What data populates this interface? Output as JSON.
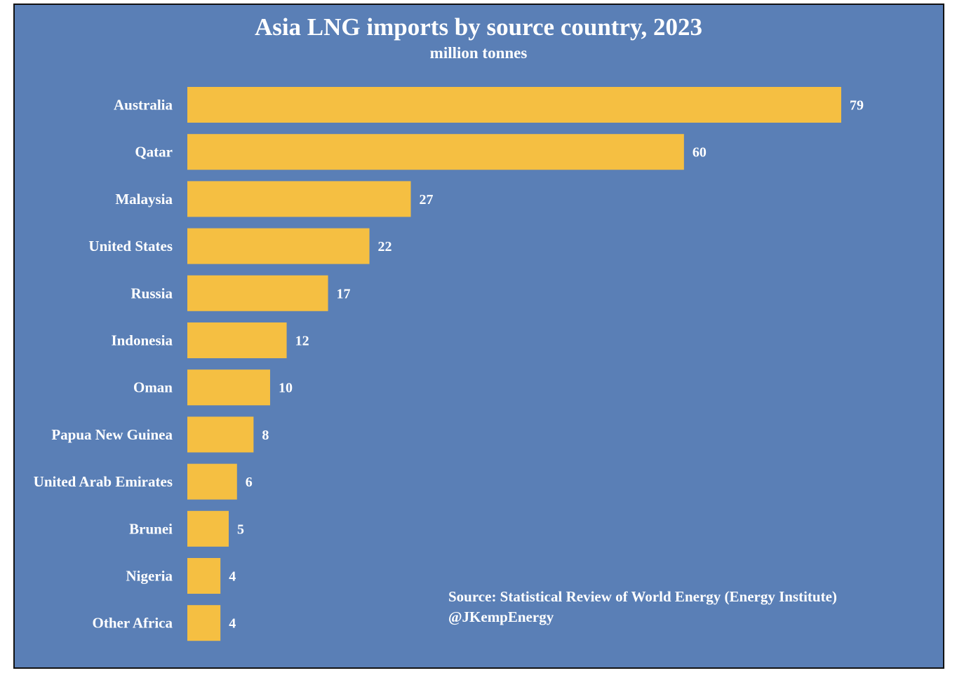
{
  "chart_data": {
    "type": "bar",
    "orientation": "horizontal",
    "title": "Asia LNG imports by source country, 2023",
    "subtitle": "million tonnes",
    "categories": [
      "Australia",
      "Qatar",
      "Malaysia",
      "United States",
      "Russia",
      "Indonesia",
      "Oman",
      "Papua New Guinea",
      "United Arab Emirates",
      "Brunei",
      "Nigeria",
      "Other Africa"
    ],
    "values": [
      79,
      60,
      27,
      22,
      17,
      12,
      10,
      8,
      6,
      5,
      4,
      4
    ],
    "data_labels": [
      "79",
      "60",
      "27",
      "22",
      "17",
      "12",
      "10",
      "8",
      "6",
      "5",
      "4",
      "4"
    ],
    "xlim": [
      0,
      79
    ],
    "grid": false,
    "legend": "none",
    "source_lines": [
      "Source: Statistical Review of World Energy (Energy Institute)",
      "@JKempEnergy"
    ],
    "colors": {
      "background": "#5a7fb6",
      "bar": "#f5bf42",
      "text": "#ffffff",
      "border": "#111111"
    }
  }
}
